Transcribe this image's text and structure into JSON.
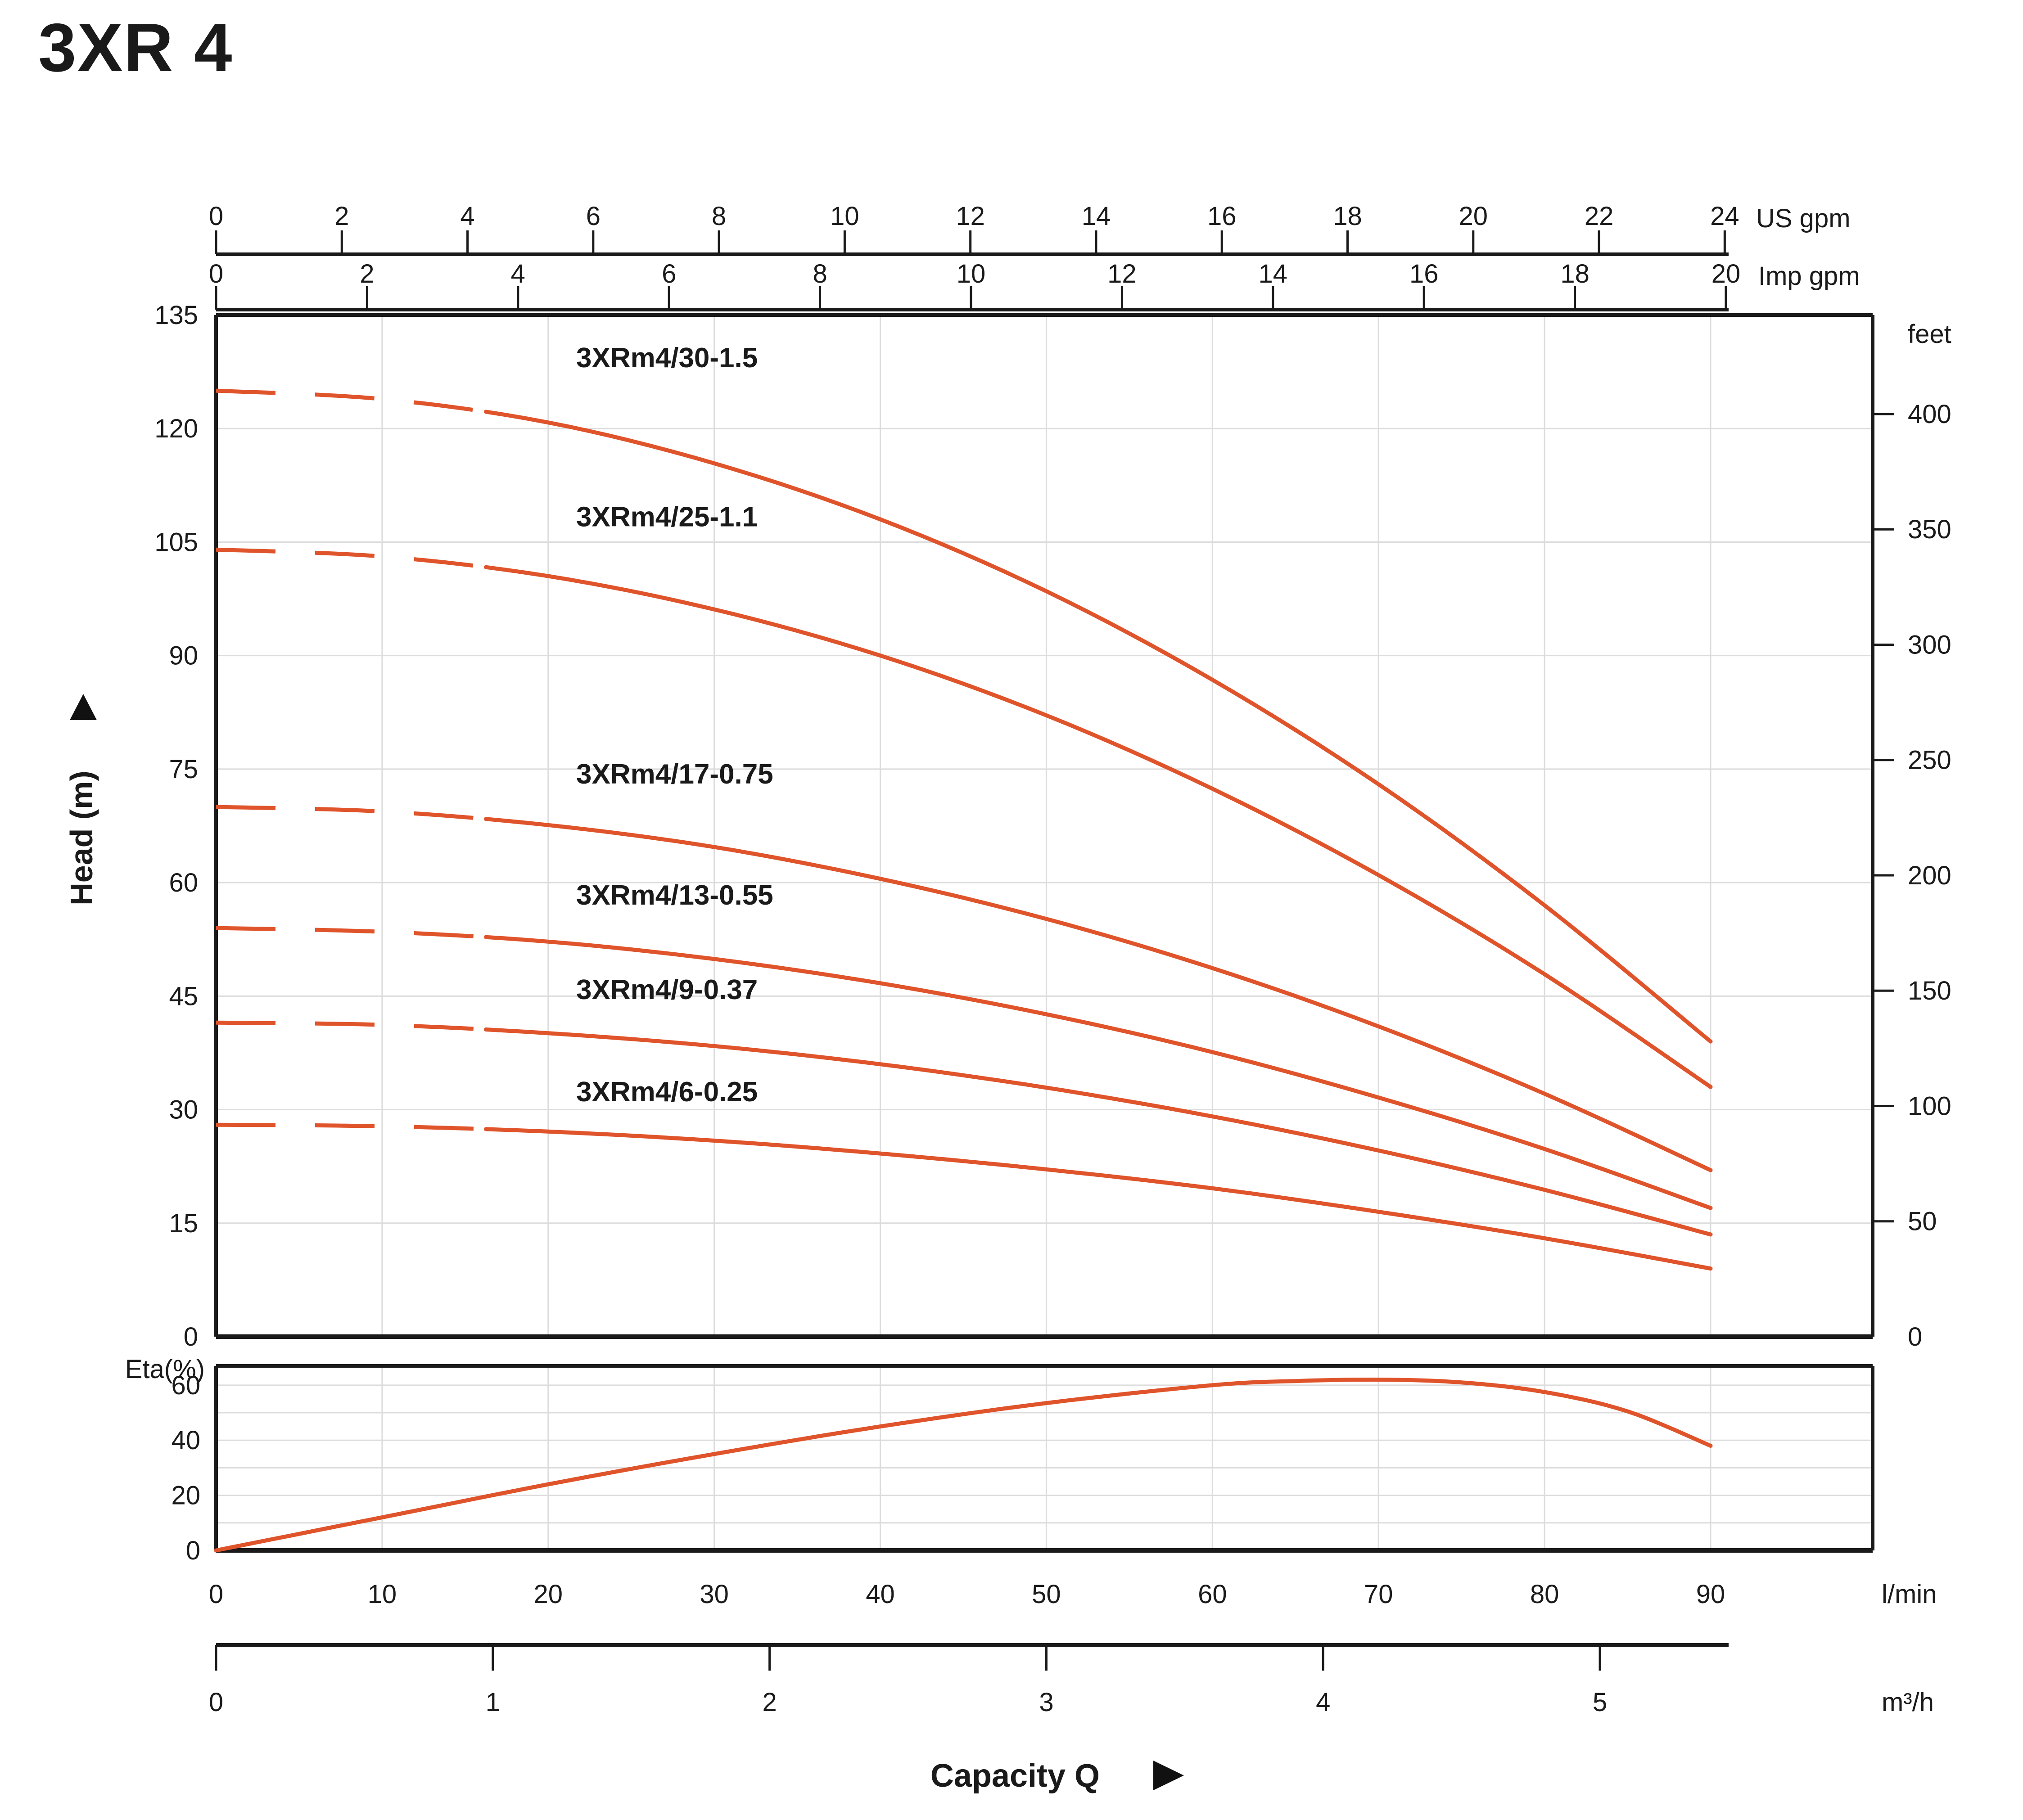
{
  "title": "3XR 4",
  "colors": {
    "accent": "#F15A29",
    "curve": "#E0542B",
    "axis": "#1A1A1A",
    "grid": "#DCDCDC",
    "label": "#111111"
  },
  "top_axes": {
    "us_gpm": {
      "unit": "US gpm",
      "ticks": [
        0,
        2,
        4,
        6,
        8,
        10,
        12,
        14,
        16,
        18,
        20,
        22,
        24
      ],
      "lmin_per_unit": 3.78541
    },
    "imp_gpm": {
      "unit": "Imp gpm",
      "ticks": [
        0,
        2,
        4,
        6,
        8,
        10,
        12,
        14,
        16,
        18,
        20
      ],
      "lmin_per_unit": 4.54609
    }
  },
  "left_axis": {
    "label": "Head (m)",
    "arrow": "up",
    "ticks": [
      135,
      120,
      105,
      90,
      75,
      60,
      45,
      30,
      15,
      0
    ]
  },
  "right_axis": {
    "unit": "feet",
    "ticks": [
      400,
      350,
      300,
      250,
      200,
      150,
      100,
      50,
      0
    ],
    "m_per_unit": 0.3048
  },
  "bottom_axes": {
    "lmin": {
      "unit": "l/min",
      "ticks": [
        0,
        10,
        20,
        30,
        40,
        50,
        60,
        70,
        80,
        90
      ]
    },
    "m3h": {
      "unit": "m³/h",
      "ticks": [
        0,
        1,
        2,
        3,
        4,
        5
      ],
      "lmin_per_unit": 16.6667
    }
  },
  "eta_axis": {
    "label": "Eta(%)",
    "ticks": [
      60,
      40,
      20,
      0
    ]
  },
  "capacity_label": {
    "text": "Capacity Q",
    "arrow": "right"
  },
  "chart_data": {
    "type": "line",
    "title": "3XR 4",
    "xlabel": "Capacity Q",
    "x_units": [
      "l/min",
      "m³/h",
      "US gpm",
      "Imp gpm"
    ],
    "ylabel": "Head (m)",
    "y_secondary_unit": "feet",
    "xlim_lmin": [
      0,
      90
    ],
    "head_ylim_m": [
      0,
      135
    ],
    "eta_ylim": [
      0,
      67
    ],
    "x_grid_step_lmin": 10,
    "head_grid_step_m": 15,
    "eta_grid_step": 10,
    "dashed_until_lmin": 15.4,
    "x_lmin": [
      0,
      10,
      20,
      30,
      40,
      50,
      60,
      70,
      80,
      90
    ],
    "series": [
      {
        "name": "3XRm4/30-1.5",
        "head_m": [
          125,
          123.9,
          120.8,
          115.4,
          108,
          98.5,
          86.8,
          73,
          57,
          39
        ]
      },
      {
        "name": "3XRm4/25-1.1",
        "head_m": [
          104,
          103.1,
          100.5,
          96.1,
          90,
          82.1,
          72.4,
          61,
          47.9,
          33
        ]
      },
      {
        "name": "3XRm4/17-0.75",
        "head_m": [
          70,
          69.4,
          67.6,
          64.7,
          60.5,
          55.2,
          48.7,
          41,
          32.1,
          22
        ]
      },
      {
        "name": "3XRm4/13-0.55",
        "head_m": [
          54,
          53.5,
          52.2,
          49.9,
          46.7,
          42.6,
          37.6,
          31.6,
          24.8,
          17
        ]
      },
      {
        "name": "3XRm4/9-0.37",
        "head_m": [
          41.5,
          41.2,
          40.1,
          38.4,
          36,
          32.9,
          29.1,
          24.6,
          19.4,
          13.5
        ]
      },
      {
        "name": "3XRm4/6-0.25",
        "head_m": [
          28,
          27.8,
          27.1,
          25.9,
          24.2,
          22.1,
          19.6,
          16.5,
          13,
          9
        ]
      }
    ],
    "efficiency": {
      "name": "Eta(%)",
      "x_lmin": [
        0,
        10,
        20,
        30,
        40,
        50,
        60,
        65,
        70,
        75,
        80,
        85,
        90
      ],
      "values": [
        0,
        12,
        24,
        35,
        45,
        53.5,
        60,
        61.5,
        62,
        61,
        57.5,
        50.5,
        38
      ]
    }
  }
}
